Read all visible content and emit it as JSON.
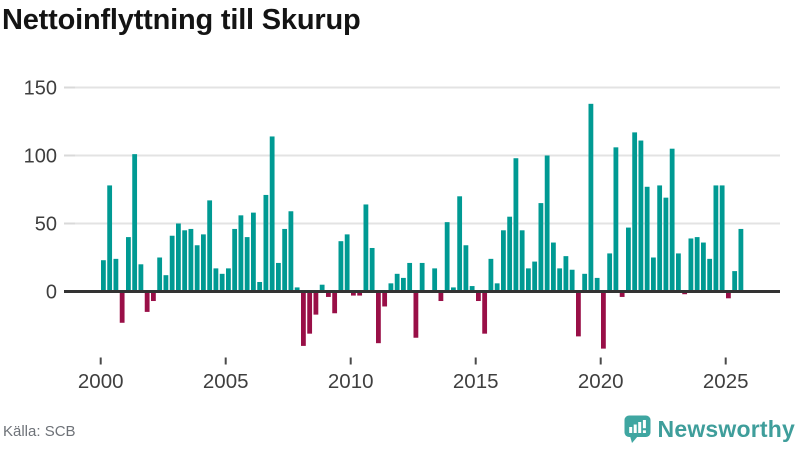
{
  "title": "Nettoinflyttning till Skurup",
  "source": "Källa: SCB",
  "brand": {
    "name": "Newsworthy",
    "color": "#3f9e9b",
    "icon": "speech-bubble-bar-chart"
  },
  "colors": {
    "positive_bar": "#009a93",
    "negative_bar": "#990f47",
    "gridline": "#e3e3e3",
    "zero_axis": "#333333",
    "tick_label": "#3f3f3f",
    "x_tick_mark": "#4a4a4a"
  },
  "chart_data": {
    "type": "bar",
    "title": "Nettoinflyttning till Skurup",
    "xlabel": "",
    "ylabel": "",
    "unit": "persons (net migration per quarter)",
    "frequency": "quarterly",
    "start": "2000-Q1",
    "end": "2025-Q3",
    "x_tick_labels": [
      "2000",
      "2005",
      "2010",
      "2015",
      "2020",
      "2025"
    ],
    "y_ticks": [
      0,
      50,
      100,
      150
    ],
    "ylim": [
      -50,
      155
    ],
    "grid": true,
    "legend": false,
    "values": [
      23,
      78,
      24,
      -23,
      40,
      101,
      20,
      -15,
      -7,
      25,
      12,
      41,
      50,
      45,
      46,
      34,
      42,
      67,
      17,
      13,
      17,
      46,
      56,
      40,
      58,
      7,
      71,
      114,
      21,
      46,
      59,
      3,
      -40,
      -31,
      -17,
      5,
      -4,
      -16,
      37,
      42,
      -3,
      -3,
      64,
      32,
      -38,
      -11,
      6,
      13,
      10,
      21,
      -34,
      21,
      0,
      17,
      -7,
      51,
      3,
      70,
      34,
      4,
      -7,
      -31,
      24,
      6,
      45,
      55,
      98,
      45,
      17,
      22,
      65,
      100,
      36,
      17,
      26,
      16,
      -33,
      13,
      138,
      10,
      -42,
      28,
      106,
      -4,
      47,
      117,
      111,
      77,
      25,
      78,
      69,
      105,
      28,
      -2,
      39,
      40,
      36,
      24,
      78,
      78,
      -5,
      15,
      46
    ]
  }
}
